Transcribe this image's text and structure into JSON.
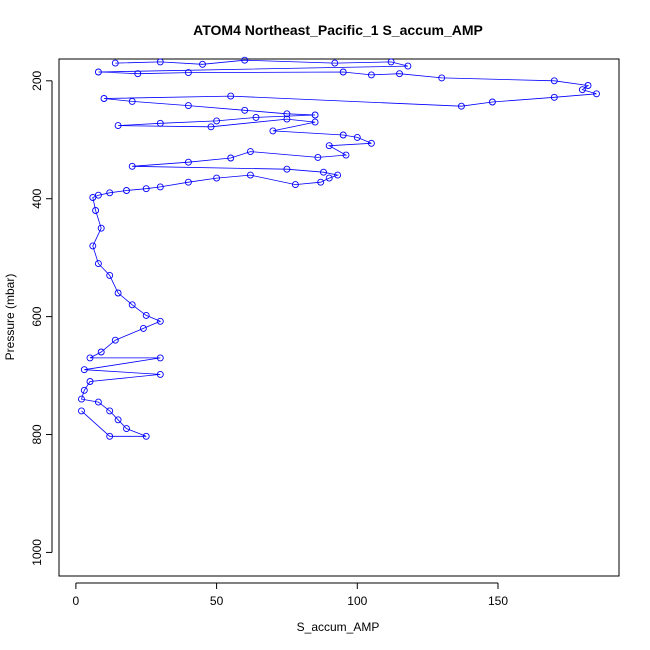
{
  "chart_data": {
    "type": "scatter",
    "title": "ATOM4 Northeast_Pacific_1 S_accum_AMP",
    "xlabel": "S_accum_AMP",
    "ylabel": "Pressure (mbar)",
    "xlim": [
      -6,
      193
    ],
    "ylim": [
      1040,
      163
    ],
    "y_reversed": true,
    "x_ticks": [
      0,
      50,
      100,
      150
    ],
    "y_ticks": [
      200,
      400,
      600,
      800,
      1000
    ],
    "grid": false,
    "legend": "none",
    "series": [
      {
        "color": "#0000ff",
        "style": "points-and-lines",
        "points": [
          [
            14,
            170
          ],
          [
            30,
            168
          ],
          [
            45,
            172
          ],
          [
            60,
            165
          ],
          [
            92,
            170
          ],
          [
            112,
            168
          ],
          [
            118,
            175
          ],
          [
            8,
            185
          ],
          [
            22,
            188
          ],
          [
            40,
            186
          ],
          [
            95,
            185
          ],
          [
            105,
            190
          ],
          [
            115,
            188
          ],
          [
            130,
            195
          ],
          [
            170,
            200
          ],
          [
            182,
            208
          ],
          [
            180,
            215
          ],
          [
            185,
            222
          ],
          [
            170,
            228
          ],
          [
            148,
            236
          ],
          [
            137,
            243
          ],
          [
            55,
            226
          ],
          [
            10,
            230
          ],
          [
            20,
            235
          ],
          [
            40,
            242
          ],
          [
            60,
            250
          ],
          [
            75,
            256
          ],
          [
            85,
            258
          ],
          [
            64,
            262
          ],
          [
            50,
            268
          ],
          [
            30,
            272
          ],
          [
            15,
            276
          ],
          [
            48,
            278
          ],
          [
            75,
            265
          ],
          [
            85,
            270
          ],
          [
            70,
            285
          ],
          [
            95,
            292
          ],
          [
            100,
            296
          ],
          [
            105,
            306
          ],
          [
            90,
            310
          ],
          [
            96,
            326
          ],
          [
            86,
            330
          ],
          [
            62,
            320
          ],
          [
            55,
            331
          ],
          [
            40,
            338
          ],
          [
            20,
            345
          ],
          [
            75,
            350
          ],
          [
            88,
            355
          ],
          [
            93,
            360
          ],
          [
            90,
            365
          ],
          [
            87,
            372
          ],
          [
            78,
            376
          ],
          [
            62,
            360
          ],
          [
            50,
            365
          ],
          [
            40,
            372
          ],
          [
            30,
            380
          ],
          [
            25,
            383
          ],
          [
            18,
            386
          ],
          [
            12,
            390
          ],
          [
            8,
            394
          ],
          [
            6,
            398
          ],
          [
            7,
            420
          ],
          [
            9,
            450
          ],
          [
            6,
            480
          ],
          [
            8,
            510
          ],
          [
            12,
            530
          ],
          [
            15,
            560
          ],
          [
            20,
            580
          ],
          [
            25,
            598
          ],
          [
            30,
            608
          ],
          [
            24,
            620
          ],
          [
            14,
            640
          ],
          [
            9,
            660
          ],
          [
            5,
            670
          ],
          [
            30,
            670
          ],
          [
            3,
            690
          ],
          [
            30,
            698
          ],
          [
            5,
            710
          ],
          [
            3,
            725
          ],
          [
            2,
            740
          ],
          [
            8,
            745
          ],
          [
            12,
            760
          ],
          [
            15,
            775
          ],
          [
            18,
            790
          ],
          [
            25,
            803
          ],
          [
            12,
            803
          ],
          [
            2,
            760
          ]
        ]
      }
    ]
  }
}
